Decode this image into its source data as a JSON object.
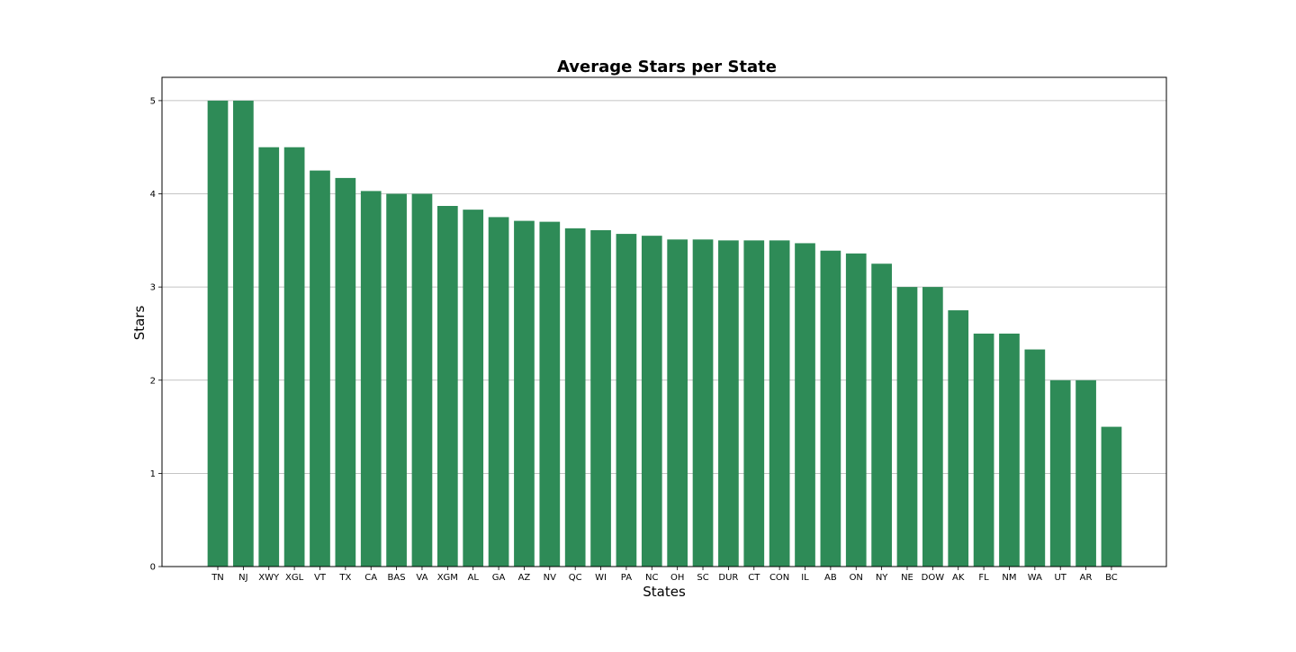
{
  "chart_data": {
    "type": "bar",
    "title": "Average Stars per State",
    "xlabel": "States",
    "ylabel": "Stars",
    "categories": [
      "TN",
      "NJ",
      "XWY",
      "XGL",
      "VT",
      "TX",
      "CA",
      "BAS",
      "VA",
      "XGM",
      "AL",
      "GA",
      "AZ",
      "NV",
      "QC",
      "WI",
      "PA",
      "NC",
      "OH",
      "SC",
      "DUR",
      "CT",
      "CON",
      "IL",
      "AB",
      "ON",
      "NY",
      "NE",
      "DOW",
      "AK",
      "FL",
      "NM",
      "WA",
      "UT",
      "AR",
      "BC"
    ],
    "values": [
      5.0,
      5.0,
      4.5,
      4.5,
      4.25,
      4.17,
      4.03,
      4.0,
      4.0,
      3.87,
      3.83,
      3.75,
      3.71,
      3.7,
      3.63,
      3.61,
      3.57,
      3.55,
      3.51,
      3.51,
      3.5,
      3.5,
      3.5,
      3.47,
      3.39,
      3.36,
      3.25,
      3.0,
      3.0,
      2.75,
      2.5,
      2.5,
      2.33,
      2.0,
      2.0,
      1.5
    ],
    "ylim": [
      0,
      5.25
    ],
    "yticks": [
      "0",
      "1",
      "2",
      "3",
      "4",
      "5"
    ],
    "grid": "y",
    "bar_color": "#2e8b57"
  }
}
